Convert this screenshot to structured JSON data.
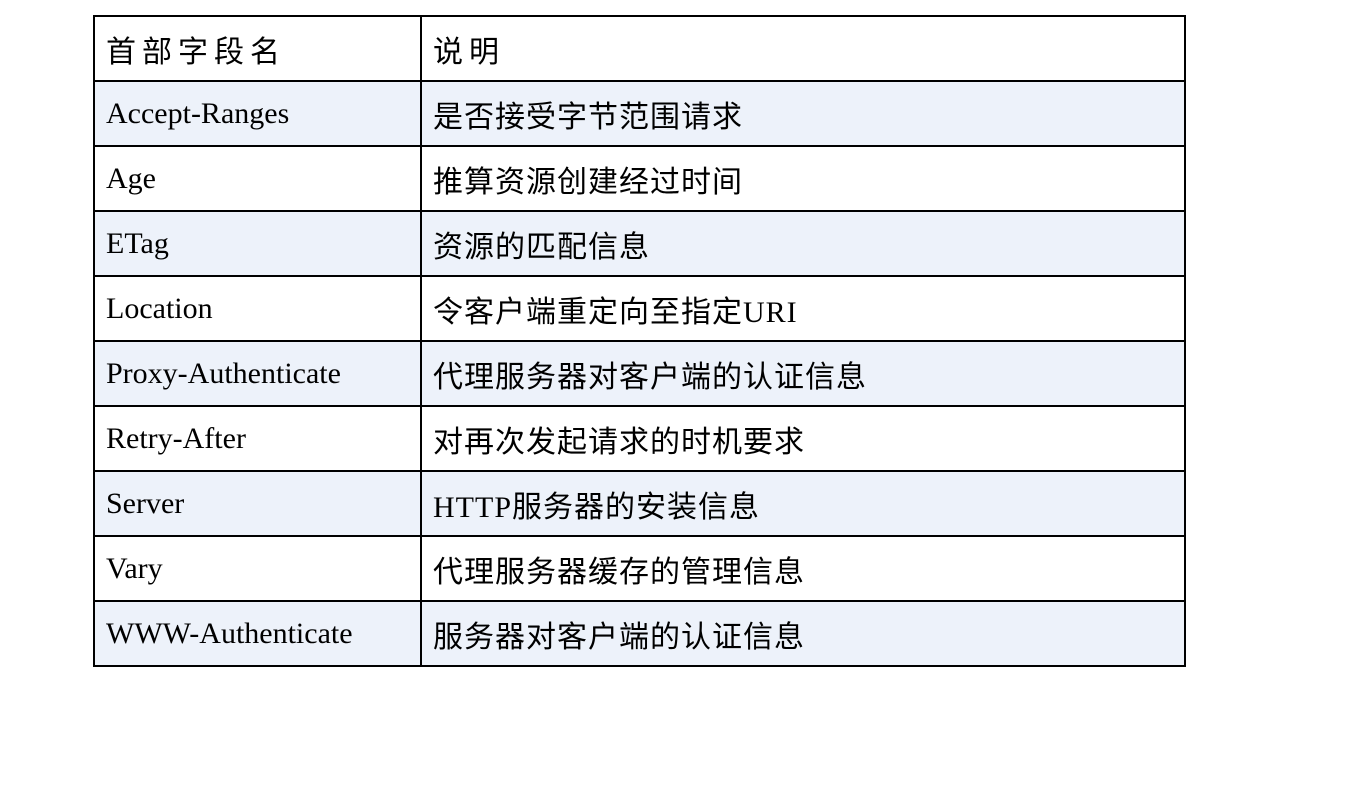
{
  "table": {
    "columns": [
      {
        "label": "首部字段名"
      },
      {
        "label": "说明"
      }
    ],
    "rows": [
      {
        "field": "Accept-Ranges",
        "description": "是否接受字节范围请求"
      },
      {
        "field": "Age",
        "description": "推算资源创建经过时间"
      },
      {
        "field": "ETag",
        "description": "资源的匹配信息"
      },
      {
        "field": "Location",
        "description": "令客户端重定向至指定URI"
      },
      {
        "field": "Proxy-Authenticate",
        "description": "代理服务器对客户端的认证信息"
      },
      {
        "field": "Retry-After",
        "description": "对再次发起请求的时机要求"
      },
      {
        "field": "Server",
        "description": "HTTP服务器的安装信息"
      },
      {
        "field": "Vary",
        "description": "代理服务器缓存的管理信息"
      },
      {
        "field": "WWW-Authenticate",
        "description": "服务器对客户端的认证信息"
      }
    ],
    "colors": {
      "border": "#000000",
      "text": "#000000",
      "row_background": "#FFFFFF",
      "row_alt_background": "#EDF2FA"
    }
  }
}
